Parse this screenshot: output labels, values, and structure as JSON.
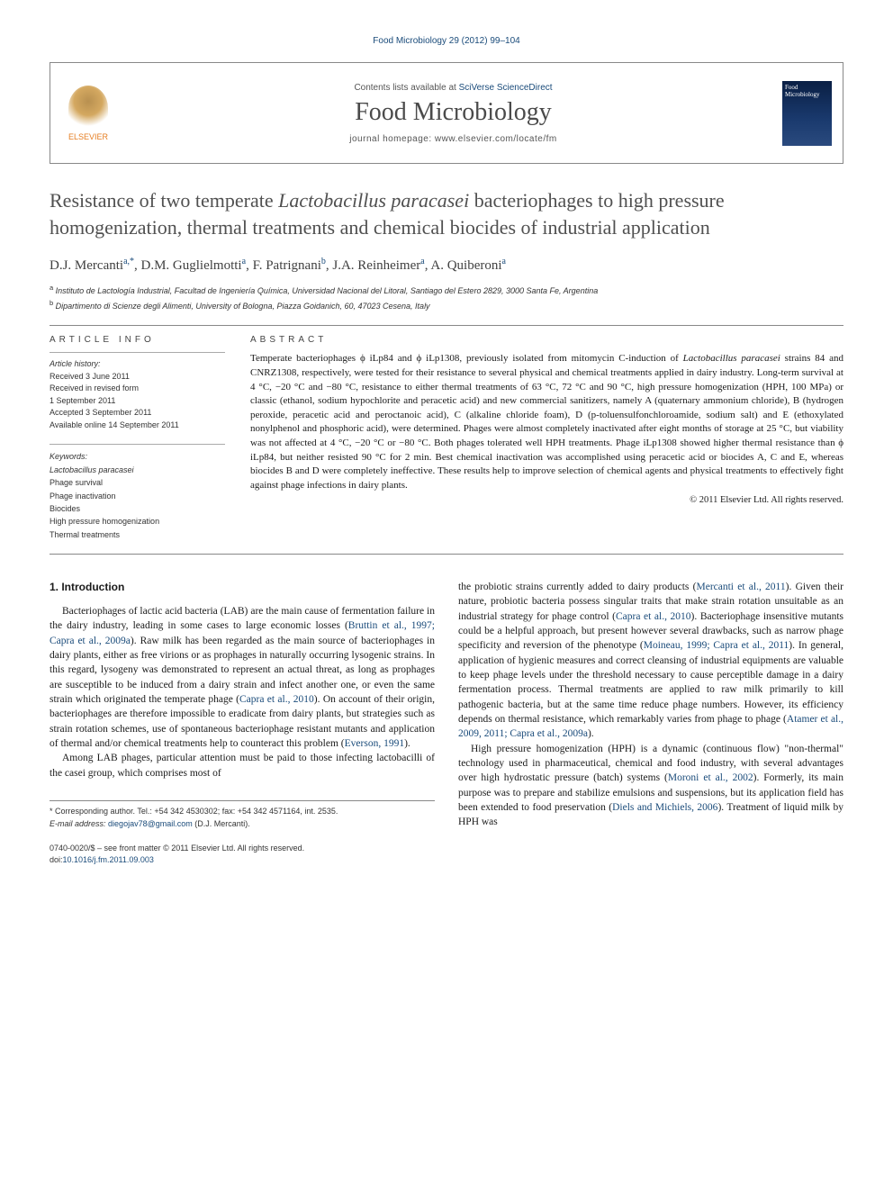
{
  "running_header": "Food Microbiology 29 (2012) 99–104",
  "journal_box": {
    "contents_prefix": "Contents lists available at ",
    "contents_link": "SciVerse ScienceDirect",
    "journal_name": "Food Microbiology",
    "homepage_prefix": "journal homepage: ",
    "homepage_url": "www.elsevier.com/locate/fm",
    "publisher": "ELSEVIER",
    "thumb_text": "Food Microbiology"
  },
  "title_parts": {
    "pre": "Resistance of two temperate ",
    "italic": "Lactobacillus paracasei",
    "post": " bacteriophages to high pressure homogenization, thermal treatments and chemical biocides of industrial application"
  },
  "authors_html": "D.J. Mercanti<sup>a,*</sup>, D.M. Guglielmotti<sup>a</sup>, F. Patrignani<sup>b</sup>, J.A. Reinheimer<sup>a</sup>, A. Quiberoni<sup>a</sup>",
  "affiliations": [
    {
      "sup": "a",
      "text": "Instituto de Lactología Industrial, Facultad de Ingeniería Química, Universidad Nacional del Litoral, Santiago del Estero 2829, 3000 Santa Fe, Argentina"
    },
    {
      "sup": "b",
      "text": "Dipartimento di Scienze degli Alimenti, University of Bologna, Piazza Goidanich, 60, 47023 Cesena, Italy"
    }
  ],
  "article_info": {
    "heading": "ARTICLE INFO",
    "history_label": "Article history:",
    "history": [
      "Received 3 June 2011",
      "Received in revised form",
      "1 September 2011",
      "Accepted 3 September 2011",
      "Available online 14 September 2011"
    ],
    "keywords_label": "Keywords:",
    "keywords": [
      "Lactobacillus paracasei",
      "Phage survival",
      "Phage inactivation",
      "Biocides",
      "High pressure homogenization",
      "Thermal treatments"
    ]
  },
  "abstract": {
    "heading": "ABSTRACT",
    "text_parts": [
      {
        "t": "Temperate bacteriophages ϕ iLp84 and ϕ iLp1308, previously isolated from mitomycin C-induction of "
      },
      {
        "t": "Lactobacillus paracasei",
        "italic": true
      },
      {
        "t": " strains 84 and CNRZ1308, respectively, were tested for their resistance to several physical and chemical treatments applied in dairy industry. Long-term survival at 4 °C, −20 °C and −80 °C, resistance to either thermal treatments of 63 °C, 72 °C and 90 °C, high pressure homogenization (HPH, 100 MPa) or classic (ethanol, sodium hypochlorite and peracetic acid) and new commercial sanitizers, namely A (quaternary ammonium chloride), B (hydrogen peroxide, peracetic acid and peroctanoic acid), C (alkaline chloride foam), D (p-toluensulfonchloroamide, sodium salt) and E (ethoxylated nonylphenol and phosphoric acid), were determined. Phages were almost completely inactivated after eight months of storage at 25 °C, but viability was not affected at 4 °C, −20 °C or −80 °C. Both phages tolerated well HPH treatments. Phage iLp1308 showed higher thermal resistance than ϕ iLp84, but neither resisted 90 °C for 2 min. Best chemical inactivation was accomplished using peracetic acid or biocides A, C and E, whereas biocides B and D were completely ineffective. These results help to improve selection of chemical agents and physical treatments to effectively fight against phage infections in dairy plants."
      }
    ],
    "copyright": "© 2011 Elsevier Ltd. All rights reserved."
  },
  "body": {
    "heading": "1. Introduction",
    "col1_p1": "Bacteriophages of lactic acid bacteria (LAB) are the main cause of fermentation failure in the dairy industry, leading in some cases to large economic losses (",
    "col1_p1_ref1": "Bruttin et al., 1997; Capra et al., 2009a",
    "col1_p1_b": "). Raw milk has been regarded as the main source of bacteriophages in dairy plants, either as free virions or as prophages in naturally occurring lysogenic strains. In this regard, lysogeny was demonstrated to represent an actual threat, as long as prophages are susceptible to be induced from a dairy strain and infect another one, or even the same strain which originated the temperate phage (",
    "col1_p1_ref2": "Capra et al., 2010",
    "col1_p1_c": "). On account of their origin, bacteriophages are therefore impossible to eradicate from dairy plants, but strategies such as strain rotation schemes, use of spontaneous bacteriophage resistant mutants and application of thermal and/or chemical treatments help to counteract this problem (",
    "col1_p1_ref3": "Everson, 1991",
    "col1_p1_d": ").",
    "col1_p2": "Among LAB phages, particular attention must be paid to those infecting lactobacilli of the casei group, which comprises most of",
    "col2_p1a": "the probiotic strains currently added to dairy products (",
    "col2_ref1": "Mercanti et al., 2011",
    "col2_p1b": "). Given their nature, probiotic bacteria possess singular traits that make strain rotation unsuitable as an industrial strategy for phage control (",
    "col2_ref2": "Capra et al., 2010",
    "col2_p1c": "). Bacteriophage insensitive mutants could be a helpful approach, but present however several drawbacks, such as narrow phage specificity and reversion of the phenotype (",
    "col2_ref3": "Moineau, 1999; Capra et al., 2011",
    "col2_p1d": "). In general, application of hygienic measures and correct cleansing of industrial equipments are valuable to keep phage levels under the threshold necessary to cause perceptible damage in a dairy fermentation process. Thermal treatments are applied to raw milk primarily to kill pathogenic bacteria, but at the same time reduce phage numbers. However, its efficiency depends on thermal resistance, which remarkably varies from phage to phage (",
    "col2_ref4": "Atamer et al., 2009, 2011; Capra et al., 2009a",
    "col2_p1e": ").",
    "col2_p2a": "High pressure homogenization (HPH) is a dynamic (continuous flow) \"non-thermal\" technology used in pharmaceutical, chemical and food industry, with several advantages over high hydrostatic pressure (batch) systems (",
    "col2_ref5": "Moroni et al., 2002",
    "col2_p2b": "). Formerly, its main purpose was to prepare and stabilize emulsions and suspensions, but its application field has been extended to food preservation (",
    "col2_ref6": "Diels and Michiels, 2006",
    "col2_p2c": "). Treatment of liquid milk by HPH was"
  },
  "footer": {
    "corr": "* Corresponding author. Tel.: +54 342 4530302; fax: +54 342 4571164, int. 2535.",
    "email_label": "E-mail address:",
    "email": "diegojav78@gmail.com",
    "email_who": "(D.J. Mercanti).",
    "copyright_line": "0740-0020/$ – see front matter © 2011 Elsevier Ltd. All rights reserved.",
    "doi_label": "doi:",
    "doi": "10.1016/j.fm.2011.09.003"
  },
  "colors": {
    "link": "#1a4b7a",
    "text": "#1a1a1a",
    "heading_gray": "#505050",
    "border": "#888888"
  }
}
